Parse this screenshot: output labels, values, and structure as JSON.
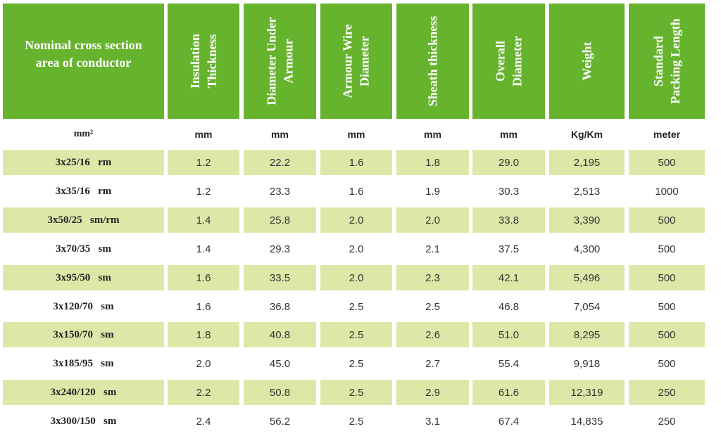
{
  "headers": [
    "Nominal cross section area of conductor",
    "Insulation Thickness",
    "Diameter Under Armour",
    "Armour Wire Diameter",
    "Sheath thickness",
    "Overall Diameter",
    "Weight",
    "Standard Packing Length"
  ],
  "units": [
    "mm²",
    "mm",
    "mm",
    "mm",
    "mm",
    "mm",
    "Kg/Km",
    "meter"
  ],
  "rows": [
    [
      "3x25/16   rm",
      "1.2",
      "22.2",
      "1.6",
      "1.8",
      "29.0",
      "2,195",
      "500"
    ],
    [
      "3x35/16   rm",
      "1.2",
      "23.3",
      "1.6",
      "1.9",
      "30.3",
      "2,513",
      "1000"
    ],
    [
      "3x50/25   sm/rm",
      "1.4",
      "25.8",
      "2.0",
      "2.0",
      "33.8",
      "3,390",
      "500"
    ],
    [
      "3x70/35   sm",
      "1.4",
      "29.3",
      "2.0",
      "2.1",
      "37.5",
      "4,300",
      "500"
    ],
    [
      "3x95/50   sm",
      "1.6",
      "33.5",
      "2.0",
      "2.3",
      "42.1",
      "5,496",
      "500"
    ],
    [
      "3x120/70   sm",
      "1.6",
      "36.8",
      "2.5",
      "2.5",
      "46.8",
      "7,054",
      "500"
    ],
    [
      "3x150/70   sm",
      "1.8",
      "40.8",
      "2.5",
      "2.6",
      "51.0",
      "8,295",
      "500"
    ],
    [
      "3x185/95   sm",
      "2.0",
      "45.0",
      "2.5",
      "2.7",
      "55.4",
      "9,918",
      "500"
    ],
    [
      "3x240/120   sm",
      "2.2",
      "50.8",
      "2.5",
      "2.9",
      "61.6",
      "12,319",
      "250"
    ],
    [
      "3x300/150   sm",
      "2.4",
      "56.2",
      "2.5",
      "3.1",
      "67.4",
      "14,835",
      "250"
    ]
  ],
  "colors": {
    "header_bg": "#66b32e",
    "row_shade": "#dde8a8",
    "header_text": "#ffffff"
  }
}
